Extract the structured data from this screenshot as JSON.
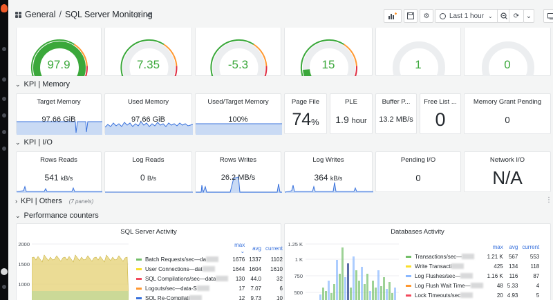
{
  "dashboard": {
    "folder": "General",
    "separator": "/",
    "title": "SQL Server Monitoring",
    "time_range": "Last 1 hour"
  },
  "gauges": [
    {
      "value": "97.9",
      "fill": 0.98,
      "color": "#3ba83b"
    },
    {
      "value": "7.35",
      "fill": 0.07,
      "color": "#3ba83b"
    },
    {
      "value": "-5.3",
      "fill": 0.0,
      "color": "#3ba83b"
    },
    {
      "value": "15",
      "fill": 0.15,
      "color": "#3ba83b"
    },
    {
      "value": "1",
      "fill": 0.02,
      "color": "#3ba83b"
    },
    {
      "value": "0",
      "fill": 0.0,
      "color": "#3ba83b"
    }
  ],
  "rows": {
    "memory": "KPI | Memory",
    "io": "KPI | I/O",
    "others": "KPI | Others",
    "others_count": "(7 panels)",
    "perf": "Performance counters"
  },
  "memory_panels": {
    "target": {
      "title": "Target Memory",
      "value": "97.66 GiB"
    },
    "used": {
      "title": "Used Memory",
      "value": "97.66 GiB"
    },
    "used_target": {
      "title": "Used/Target Memory",
      "value": "100%"
    },
    "page_file": {
      "title": "Page File",
      "value": "74",
      "unit": "%"
    },
    "ple": {
      "title": "PLE",
      "value": "1.9",
      "unit": "hour"
    },
    "buffer": {
      "title": "Buffer P...",
      "value": "13.2 MB/s"
    },
    "free_list": {
      "title": "Free List ...",
      "value": "0"
    },
    "grant": {
      "title": "Memory Grant Pending",
      "value": "0"
    }
  },
  "io_panels": {
    "rows_reads": {
      "title": "Rows Reads",
      "value": "541",
      "unit": "kB/s"
    },
    "log_reads": {
      "title": "Log Reads",
      "value": "0",
      "unit": "B/s"
    },
    "rows_writes": {
      "title": "Rows Writes",
      "value": "26.2 MB/s"
    },
    "log_writes": {
      "title": "Log Writes",
      "value": "364",
      "unit": "kB/s"
    },
    "pending": {
      "title": "Pending I/O",
      "value": "0"
    },
    "network": {
      "title": "Network I/O",
      "value": "N/A"
    }
  },
  "sql_activity": {
    "title": "SQL Server Activity",
    "legend_headers": [
      "max",
      "avg",
      "current"
    ],
    "y_ticks": [
      "2000",
      "1500",
      "1000"
    ],
    "series": [
      {
        "name": "Batch Requests/sec—da",
        "color": "#73bf69",
        "max": "1676",
        "avg": "1337",
        "current": "1102"
      },
      {
        "name": "User Connections—dat",
        "color": "#fade2a",
        "max": "1644",
        "avg": "1604",
        "current": "1610"
      },
      {
        "name": "SQL Compilations/sec—data",
        "color": "#f2495c",
        "max": "130",
        "avg": "44.0",
        "current": "32"
      },
      {
        "name": "Logouts/sec—data-S",
        "color": "#ff9830",
        "max": "17",
        "avg": "7.07",
        "current": "6"
      },
      {
        "name": "SQL Re-Compilati",
        "color": "#3871dc",
        "max": "12",
        "avg": "9.73",
        "current": "10"
      }
    ]
  },
  "db_activity": {
    "title": "Databases Activity",
    "legend_headers": [
      "max",
      "avg",
      "current"
    ],
    "y_ticks": [
      "1.25 K",
      "1 K",
      "750",
      "500"
    ],
    "series": [
      {
        "name": "Transactions/sec—",
        "color": "#73bf69",
        "max": "1.21 K",
        "avg": "567",
        "current": "553"
      },
      {
        "name": "Write Transacti",
        "color": "#fade2a",
        "max": "425",
        "avg": "134",
        "current": "118"
      },
      {
        "name": "Log Flushes/sec—",
        "color": "#8ab8ff",
        "max": "1.16 K",
        "avg": "116",
        "current": "87"
      },
      {
        "name": "Log Flush Wait Time—",
        "color": "#ff9830",
        "max": "48",
        "avg": "5.33",
        "current": "4"
      },
      {
        "name": "Lock Timeouts/sec",
        "color": "#f2495c",
        "max": "20",
        "avg": "4.93",
        "current": "5"
      }
    ]
  }
}
